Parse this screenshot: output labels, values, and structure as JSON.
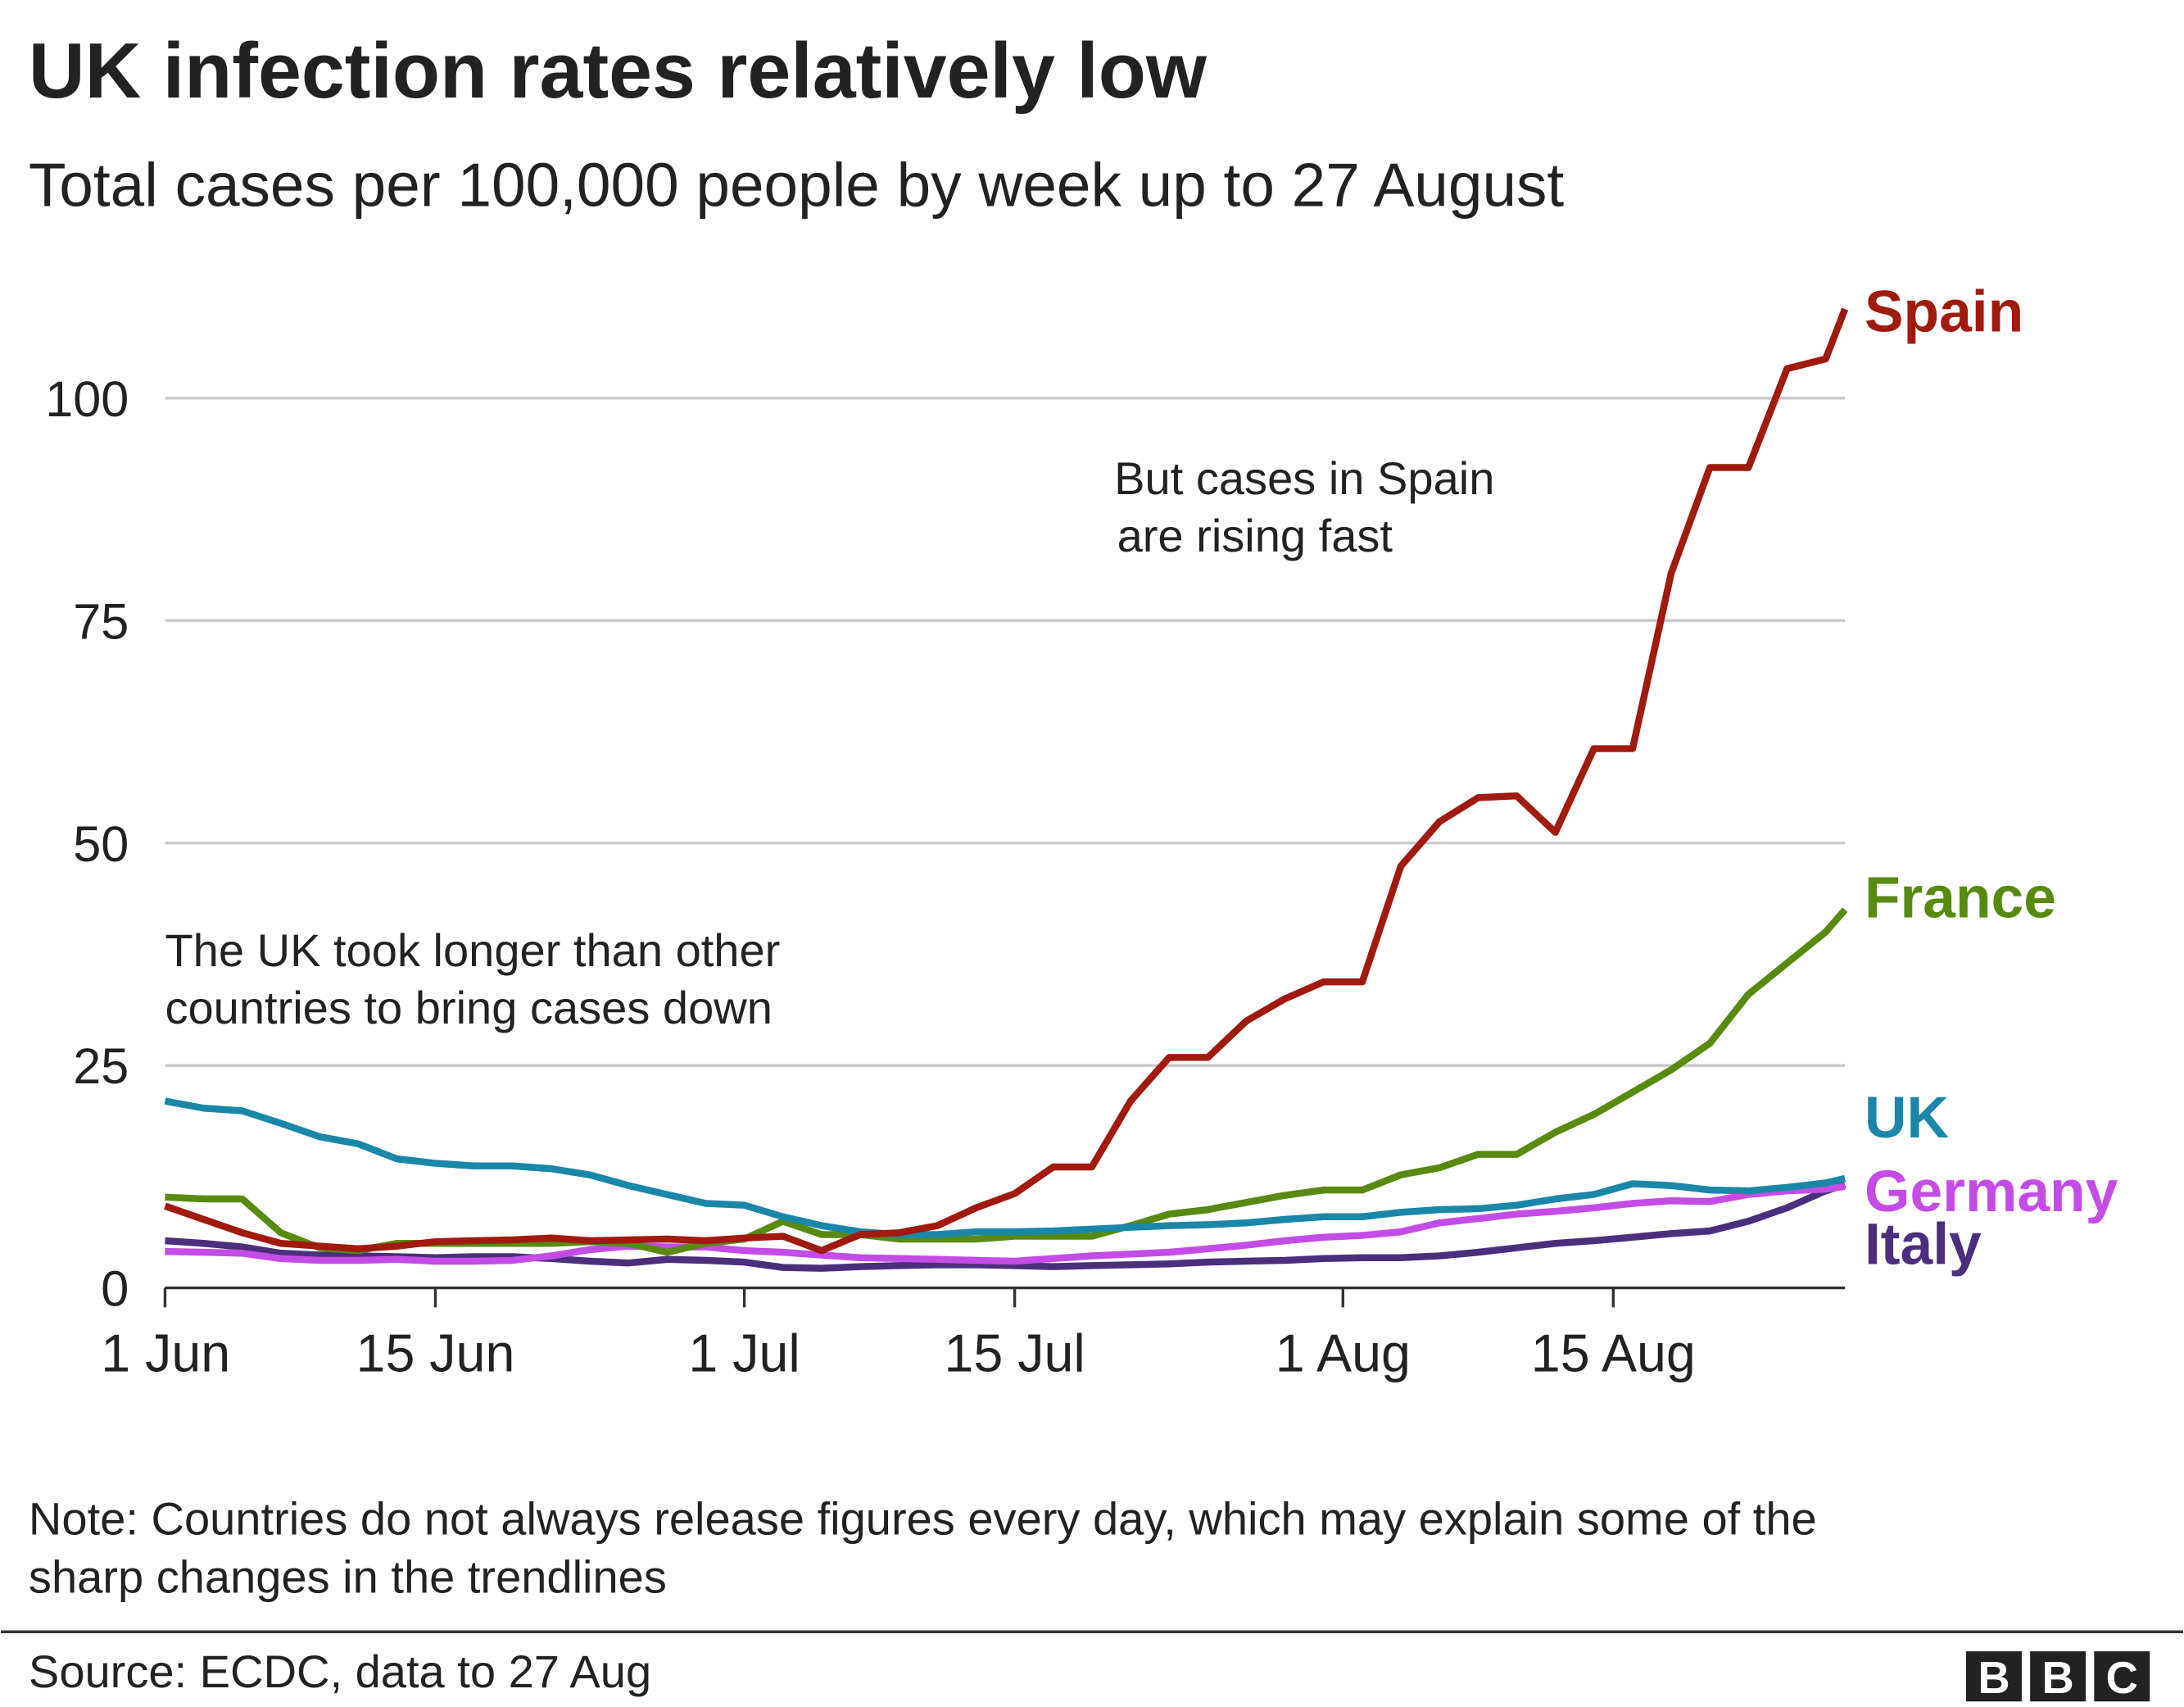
{
  "chart_data": {
    "type": "line",
    "title": "UK infection rates relatively low",
    "subtitle": "Total cases per 100,000 people by week up to 27 August",
    "annotations": [
      [
        "But cases in Spain",
        "are rising fast"
      ],
      [
        "The UK took longer than other",
        "countries to bring cases down"
      ]
    ],
    "note": [
      "Note: Countries do not always release figures every day, which may explain some of the",
      "sharp changes in the trendlines"
    ],
    "source": "Source: ECDC, data to 27 Aug",
    "logo": [
      "B",
      "B",
      "C"
    ],
    "x": [
      "1 Jun",
      "3 Jun",
      "5 Jun",
      "7 Jun",
      "9 Jun",
      "11 Jun",
      "13 Jun",
      "15 Jun",
      "17 Jun",
      "19 Jun",
      "21 Jun",
      "23 Jun",
      "25 Jun",
      "27 Jun",
      "29 Jun",
      "1 Jul",
      "3 Jul",
      "5 Jul",
      "7 Jul",
      "9 Jul",
      "11 Jul",
      "13 Jul",
      "15 Jul",
      "17 Jul",
      "19 Jul",
      "21 Jul",
      "23 Jul",
      "25 Jul",
      "27 Jul",
      "29 Jul",
      "31 Jul",
      "2 Aug",
      "4 Aug",
      "6 Aug",
      "8 Aug",
      "10 Aug",
      "12 Aug",
      "14 Aug",
      "16 Aug",
      "18 Aug",
      "20 Aug",
      "22 Aug",
      "24 Aug",
      "26 Aug",
      "27 Aug"
    ],
    "xlim": [
      "1 Jun",
      "27 Aug"
    ],
    "xticks": [
      "1 Jun",
      "15 Jun",
      "1 Jul",
      "15 Jul",
      "1 Aug",
      "15 Aug"
    ],
    "ylim": [
      0,
      110
    ],
    "yticks": [
      0,
      25,
      50,
      75,
      100
    ],
    "grid": true,
    "series": [
      {
        "name": "Spain",
        "color": "#a01a10",
        "values": [
          9.2,
          7.7,
          6.2,
          5,
          4.7,
          4.4,
          4.7,
          5.2,
          5.3,
          5.4,
          5.6,
          5.3,
          5.4,
          5.5,
          5.3,
          5.6,
          5.8,
          4.2,
          6,
          6.2,
          7,
          9,
          10.6,
          13.6,
          13.6,
          21,
          25.9,
          25.9,
          30,
          32.5,
          34.4,
          34.4,
          47.4,
          52.4,
          55.1,
          55.3,
          51.2,
          60.6,
          60.6,
          80.3,
          92.2,
          92.2,
          103.3,
          104.4,
          110
        ]
      },
      {
        "name": "France",
        "color": "#588a12",
        "values": [
          10.2,
          10,
          10,
          6.2,
          4.5,
          4.2,
          5,
          5,
          5,
          5,
          5,
          5.2,
          5,
          4,
          5,
          5.5,
          7.5,
          6,
          6,
          5.5,
          5.5,
          5.5,
          5.8,
          5.8,
          5.8,
          7,
          8.3,
          8.8,
          9.6,
          10.4,
          11,
          11,
          12.7,
          13.5,
          15,
          15,
          17.5,
          19.5,
          22,
          24.5,
          27.5,
          33,
          36.5,
          40,
          42.5
        ]
      },
      {
        "name": "UK",
        "color": "#1a87a8",
        "values": [
          21,
          20.2,
          19.9,
          18.5,
          17,
          16.2,
          14.5,
          14,
          13.7,
          13.7,
          13.4,
          12.7,
          11.5,
          10.5,
          9.5,
          9.3,
          8,
          7,
          6.3,
          6,
          6,
          6.3,
          6.3,
          6.4,
          6.6,
          6.8,
          7,
          7.1,
          7.3,
          7.7,
          8,
          8,
          8.5,
          8.8,
          8.9,
          9.3,
          10,
          10.5,
          11.7,
          11.5,
          11,
          10.9,
          11.3,
          11.8,
          12.3
        ]
      },
      {
        "name": "Germany",
        "color": "#c44ce6",
        "values": [
          4.1,
          4,
          3.9,
          3.3,
          3.1,
          3.1,
          3.2,
          3,
          3,
          3.1,
          3.6,
          4.3,
          4.7,
          4.6,
          4.6,
          4.2,
          4,
          3.7,
          3.4,
          3.3,
          3.2,
          3.1,
          3,
          3.3,
          3.6,
          3.8,
          4,
          4.4,
          4.8,
          5.3,
          5.7,
          5.9,
          6.3,
          7.3,
          7.8,
          8.3,
          8.6,
          9,
          9.5,
          9.8,
          9.7,
          10.5,
          10.9,
          11.1,
          11.4
        ]
      },
      {
        "name": "Italy",
        "color": "#4b2f7c",
        "values": [
          5.3,
          5,
          4.6,
          3.9,
          3.7,
          3.6,
          3.5,
          3.4,
          3.5,
          3.5,
          3.3,
          3,
          2.8,
          3.2,
          3.1,
          2.9,
          2.3,
          2.2,
          2.4,
          2.5,
          2.6,
          2.6,
          2.5,
          2.4,
          2.5,
          2.6,
          2.7,
          2.9,
          3,
          3.1,
          3.3,
          3.4,
          3.4,
          3.6,
          4,
          4.5,
          5,
          5.3,
          5.7,
          6.1,
          6.4,
          7.5,
          9,
          10.9,
          11.6
        ]
      }
    ]
  }
}
